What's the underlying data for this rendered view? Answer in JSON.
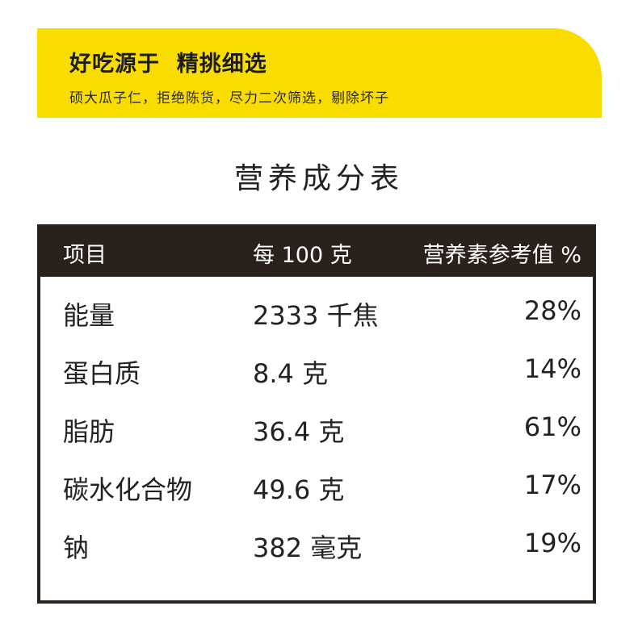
{
  "banner": {
    "title": "好吃源于  精挑细选",
    "subtitle": "硕大瓜子仁，拒绝陈货，尽力二次筛选，剔除坏子",
    "bg_color": "#f9dd00"
  },
  "section_title": "营养成分表",
  "table": {
    "header_bg": "#2b211c",
    "headers": [
      "项目",
      "每 100 克",
      "营养素参考值 %"
    ],
    "rows": [
      [
        "能量",
        "2333 千焦",
        "28%"
      ],
      [
        "蛋白质",
        "8.4 克",
        "14%"
      ],
      [
        "脂肪",
        "36.4 克",
        "61%"
      ],
      [
        "碳水化合物",
        "49.6 克",
        "17%"
      ],
      [
        "钠",
        "382 毫克",
        "19%"
      ]
    ]
  }
}
